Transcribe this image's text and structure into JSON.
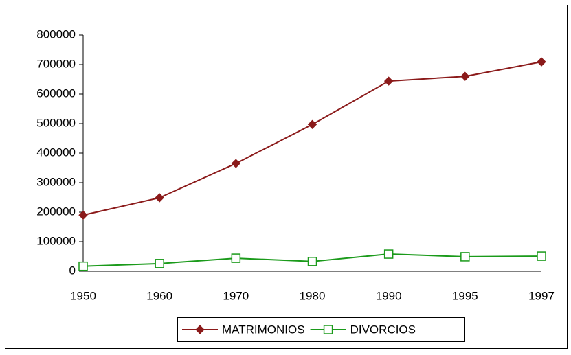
{
  "chart_data": {
    "type": "line",
    "categories": [
      "1950",
      "1960",
      "1970",
      "1980",
      "1990",
      "1995",
      "1997"
    ],
    "series": [
      {
        "name": "MATRIMONIOS",
        "color": "#8b1a1a",
        "marker": "diamond",
        "values": [
          190000,
          249000,
          365000,
          497000,
          644000,
          660000,
          709000
        ]
      },
      {
        "name": "DIVORCIOS",
        "color": "#1a9a1a",
        "marker": "square",
        "values": [
          17000,
          26000,
          44000,
          33000,
          58000,
          49000,
          51000
        ]
      }
    ],
    "ylim": [
      0,
      800000
    ],
    "yticks": [
      0,
      100000,
      200000,
      300000,
      400000,
      500000,
      600000,
      700000,
      800000
    ],
    "grid": false,
    "legend": "bottom"
  }
}
